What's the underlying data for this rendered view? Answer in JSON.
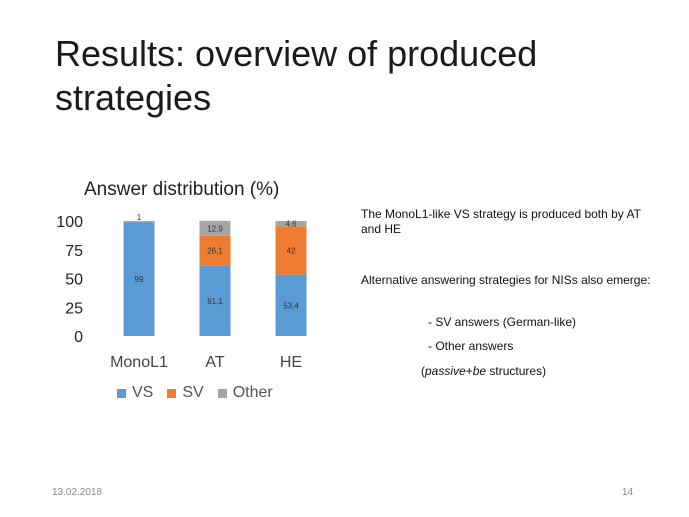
{
  "slide": {
    "title": "Results: overview of produced strategies",
    "date": "13.02.2018",
    "page_number": "14"
  },
  "text": {
    "p1": "The MonoL1-like VS strategy is produced both by AT and HE",
    "p2": "Alternative answering strategies for NISs also emerge:",
    "bullet1": "- SV answers (German-like)",
    "bullet2": "- Other answers",
    "note_italic1": "passive",
    "note_plus": "+",
    "note_italic2": "be",
    "note_rest": " structures)",
    "note_open": "("
  },
  "colors": {
    "VS": "#5b9bd5",
    "SV": "#ed7d31",
    "Other": "#a5a5a5"
  },
  "chart_data": {
    "type": "bar",
    "stacked": true,
    "title": "Answer distribution (%)",
    "categories": [
      "MonoL1",
      "AT",
      "HE"
    ],
    "series": [
      {
        "name": "VS",
        "values": [
          99,
          61.1,
          53.4
        ],
        "labels": [
          "99",
          "61,1",
          "53,4"
        ]
      },
      {
        "name": "SV",
        "values": [
          0,
          26.1,
          42
        ],
        "labels": [
          "",
          "26,1",
          "42"
        ]
      },
      {
        "name": "Other",
        "values": [
          1,
          12.9,
          4.6
        ],
        "labels": [
          "1",
          "12,9",
          "4,6"
        ]
      }
    ],
    "yticks": [
      "0",
      "25",
      "50",
      "75",
      "100"
    ],
    "ylim": [
      0,
      100
    ],
    "legend": "bottom",
    "grid": false
  }
}
